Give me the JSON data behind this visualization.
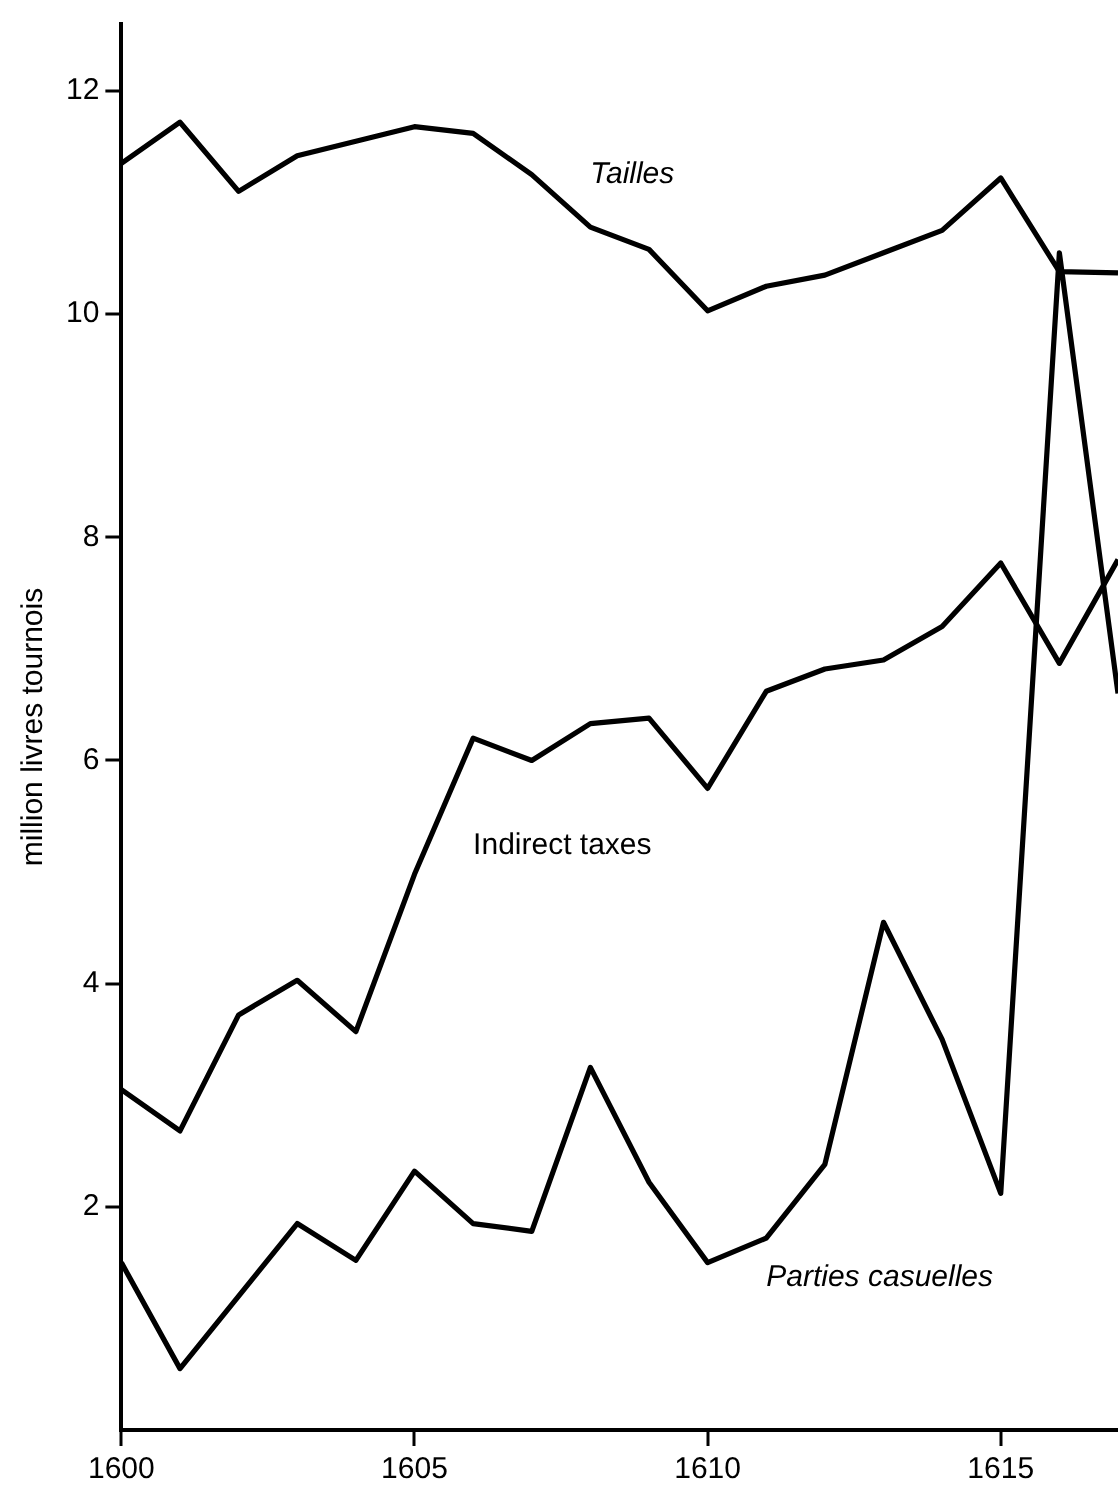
{
  "chart_data": {
    "type": "line",
    "ylabel": "million livres tournois",
    "x": [
      1600,
      1601,
      1602,
      1603,
      1604,
      1605,
      1606,
      1607,
      1608,
      1609,
      1610,
      1611,
      1612,
      1613,
      1614,
      1615,
      1616,
      1617
    ],
    "series": [
      {
        "name": "Tailles",
        "color": "#000000",
        "values": [
          11.35,
          11.72,
          11.1,
          11.42,
          11.55,
          11.68,
          11.62,
          11.25,
          10.78,
          10.58,
          10.03,
          10.25,
          10.35,
          10.55,
          10.75,
          11.22,
          10.38,
          10.37
        ]
      },
      {
        "name": "Indirect taxes",
        "color": "#000000",
        "values": [
          3.05,
          2.68,
          3.72,
          4.03,
          3.57,
          4.98,
          6.2,
          6.0,
          6.33,
          6.38,
          5.75,
          6.62,
          6.82,
          6.9,
          7.2,
          7.77,
          6.87,
          7.8
        ]
      },
      {
        "name": "Parties casuelles",
        "color": "#000000",
        "values": [
          1.5,
          0.55,
          1.2,
          1.85,
          1.52,
          2.32,
          1.85,
          1.78,
          3.25,
          2.22,
          1.5,
          1.72,
          2.38,
          4.55,
          3.5,
          2.12,
          10.55,
          6.6
        ]
      }
    ],
    "xlim": [
      1600,
      1617
    ],
    "xticks": [
      1600,
      1605,
      1610,
      1615
    ],
    "ylim": [
      0,
      12.6
    ],
    "yticks": [
      2,
      4,
      6,
      8,
      10,
      12
    ],
    "grid": false,
    "legend": false,
    "marker": "none",
    "line_style": "solid"
  }
}
